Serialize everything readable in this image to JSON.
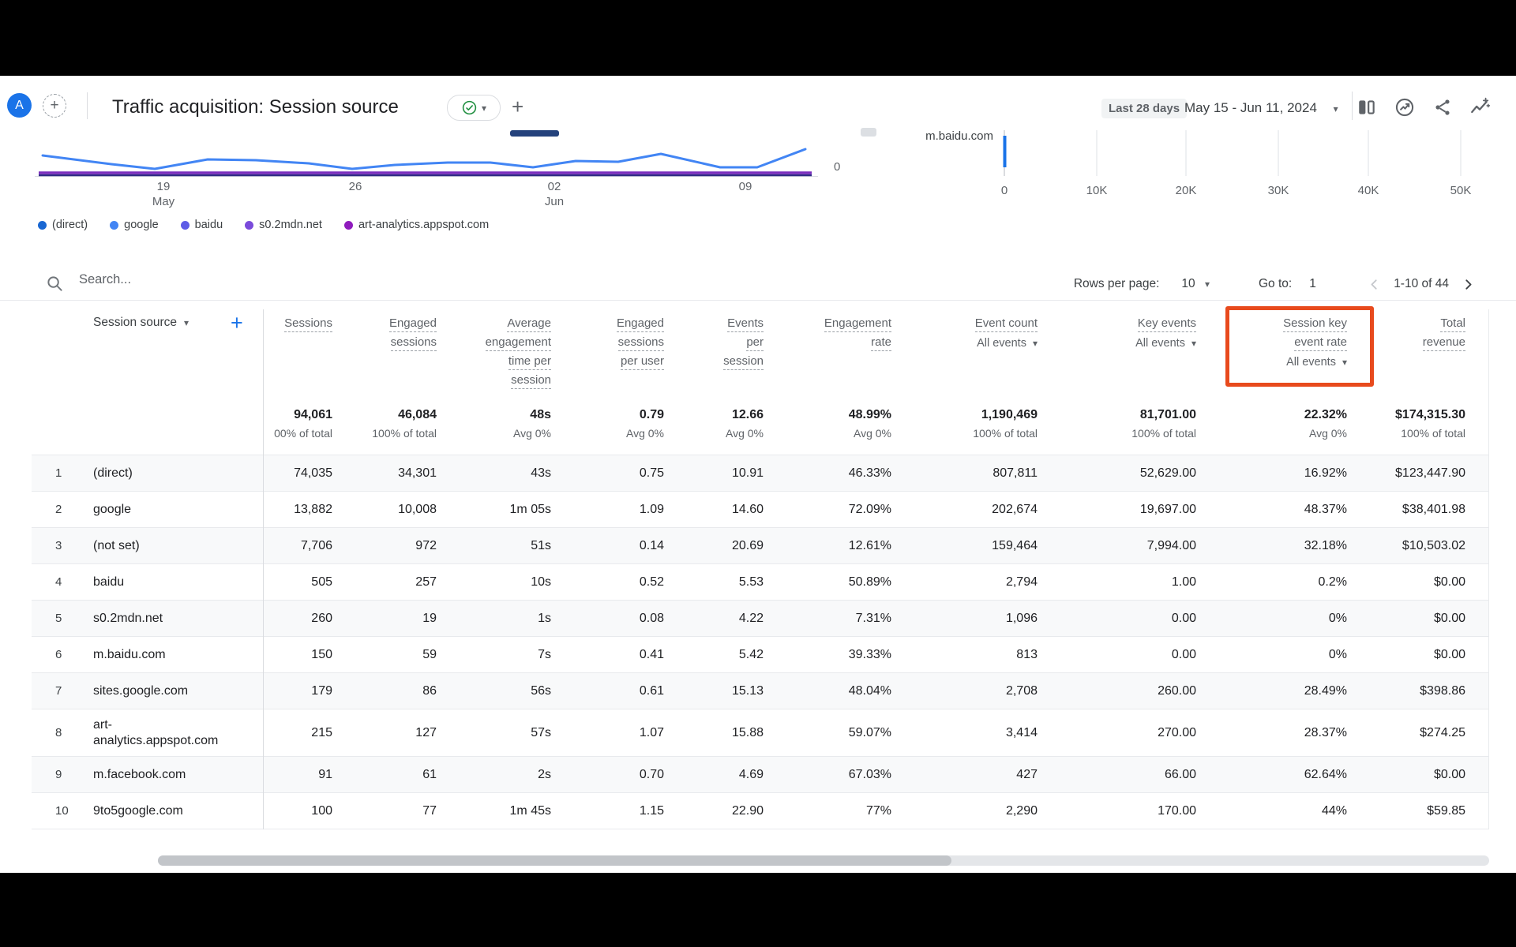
{
  "theme": {
    "accent": "#1a73e8",
    "highlight": "#e84a1d",
    "line": "#4285f4",
    "purple": "#7b2fbe",
    "navy": "#2f2a85",
    "bar": "#1a73e8",
    "green": "#1e8e3e"
  },
  "app": {
    "avatar": "A",
    "title": "Traffic acquisition: Session source"
  },
  "date": {
    "chip": "Last 28 days",
    "range": "May 15 - Jun 11, 2024"
  },
  "legend": [
    {
      "label": "(direct)",
      "color": "#1967d2"
    },
    {
      "label": "google",
      "color": "#4285f4"
    },
    {
      "label": "baidu",
      "color": "#5e5ce6"
    },
    {
      "label": "s0.2mdn.net",
      "color": "#7a4bdb"
    },
    {
      "label": "art-analytics.appspot.com",
      "color": "#8f1bbd"
    }
  ],
  "line_chart": {
    "x_ticks": [
      {
        "lines": [
          "19",
          "May"
        ]
      },
      {
        "lines": [
          "26"
        ]
      },
      {
        "lines": [
          "02",
          "Jun"
        ]
      },
      {
        "lines": [
          "09"
        ]
      }
    ],
    "zero_label": "0",
    "points": [
      [
        54,
        101
      ],
      [
        141,
        112
      ],
      [
        196,
        118
      ],
      [
        263,
        106
      ],
      [
        324,
        107
      ],
      [
        391,
        111
      ],
      [
        446,
        118
      ],
      [
        500,
        113
      ],
      [
        567,
        110
      ],
      [
        621,
        110
      ],
      [
        675,
        116
      ],
      [
        729,
        108
      ],
      [
        783,
        109
      ],
      [
        837,
        99
      ],
      [
        912,
        116
      ],
      [
        959,
        116
      ],
      [
        1020,
        93
      ]
    ]
  },
  "bar_chart": {
    "row_label": "m.baidu.com",
    "ticks": [
      "0",
      "10K",
      "20K",
      "30K",
      "40K",
      "50K"
    ]
  },
  "controls": {
    "search_placeholder": "Search...",
    "rows_per_page_label": "Rows per page:",
    "rows_per_page_value": "10",
    "goto_label": "Go to:",
    "goto_value": "1",
    "range_label": "1-10 of 44"
  },
  "table": {
    "dimension_header": "Session source",
    "columns": [
      {
        "lines": [
          "Sessions"
        ]
      },
      {
        "lines": [
          "Engaged",
          "sessions"
        ]
      },
      {
        "lines": [
          "Average",
          "engagement",
          "time per",
          "session"
        ]
      },
      {
        "lines": [
          "Engaged",
          "sessions",
          "per user"
        ]
      },
      {
        "lines": [
          "Events",
          "per",
          "session"
        ]
      },
      {
        "lines": [
          "Engagement",
          "rate"
        ]
      },
      {
        "lines": [
          "Event count"
        ],
        "sub": "All events"
      },
      {
        "lines": [
          "Key events"
        ],
        "sub": "All events"
      },
      {
        "lines": [
          "Session key",
          "event rate"
        ],
        "sub": "All events",
        "highlighted": true
      },
      {
        "lines": [
          "Total",
          "revenue"
        ]
      }
    ],
    "totals": [
      {
        "v": "94,061",
        "sub": "00% of total"
      },
      {
        "v": "46,084",
        "sub": "100% of total"
      },
      {
        "v": "48s",
        "sub": "Avg 0%"
      },
      {
        "v": "0.79",
        "sub": "Avg 0%"
      },
      {
        "v": "12.66",
        "sub": "Avg 0%"
      },
      {
        "v": "48.99%",
        "sub": "Avg 0%"
      },
      {
        "v": "1,190,469",
        "sub": "100% of total"
      },
      {
        "v": "81,701.00",
        "sub": "100% of total"
      },
      {
        "v": "22.32%",
        "sub": "Avg 0%"
      },
      {
        "v": "$174,315.30",
        "sub": "100% of total"
      }
    ],
    "rows": [
      {
        "index": "1",
        "name_lines": [
          "(direct)"
        ],
        "values": [
          "74,035",
          "34,301",
          "43s",
          "0.75",
          "10.91",
          "46.33%",
          "807,811",
          "52,629.00",
          "16.92%",
          "$123,447.90"
        ]
      },
      {
        "index": "2",
        "name_lines": [
          "google"
        ],
        "values": [
          "13,882",
          "10,008",
          "1m 05s",
          "1.09",
          "14.60",
          "72.09%",
          "202,674",
          "19,697.00",
          "48.37%",
          "$38,401.98"
        ]
      },
      {
        "index": "3",
        "name_lines": [
          "(not set)"
        ],
        "values": [
          "7,706",
          "972",
          "51s",
          "0.14",
          "20.69",
          "12.61%",
          "159,464",
          "7,994.00",
          "32.18%",
          "$10,503.02"
        ]
      },
      {
        "index": "4",
        "name_lines": [
          "baidu"
        ],
        "values": [
          "505",
          "257",
          "10s",
          "0.52",
          "5.53",
          "50.89%",
          "2,794",
          "1.00",
          "0.2%",
          "$0.00"
        ]
      },
      {
        "index": "5",
        "name_lines": [
          "s0.2mdn.net"
        ],
        "values": [
          "260",
          "19",
          "1s",
          "0.08",
          "4.22",
          "7.31%",
          "1,096",
          "0.00",
          "0%",
          "$0.00"
        ]
      },
      {
        "index": "6",
        "name_lines": [
          "m.baidu.com"
        ],
        "values": [
          "150",
          "59",
          "7s",
          "0.41",
          "5.42",
          "39.33%",
          "813",
          "0.00",
          "0%",
          "$0.00"
        ]
      },
      {
        "index": "7",
        "name_lines": [
          "sites.google.com"
        ],
        "values": [
          "179",
          "86",
          "56s",
          "0.61",
          "15.13",
          "48.04%",
          "2,708",
          "260.00",
          "28.49%",
          "$398.86"
        ]
      },
      {
        "index": "8",
        "name_lines": [
          "art-",
          "analytics.appspot.com"
        ],
        "values": [
          "215",
          "127",
          "57s",
          "1.07",
          "15.88",
          "59.07%",
          "3,414",
          "270.00",
          "28.37%",
          "$274.25"
        ]
      },
      {
        "index": "9",
        "name_lines": [
          "m.facebook.com"
        ],
        "values": [
          "91",
          "61",
          "2s",
          "0.70",
          "4.69",
          "67.03%",
          "427",
          "66.00",
          "62.64%",
          "$0.00"
        ]
      },
      {
        "index": "10",
        "name_lines": [
          "9to5google.com"
        ],
        "values": [
          "100",
          "77",
          "1m 45s",
          "1.15",
          "22.90",
          "77%",
          "2,290",
          "170.00",
          "44%",
          "$59.85"
        ]
      }
    ]
  }
}
